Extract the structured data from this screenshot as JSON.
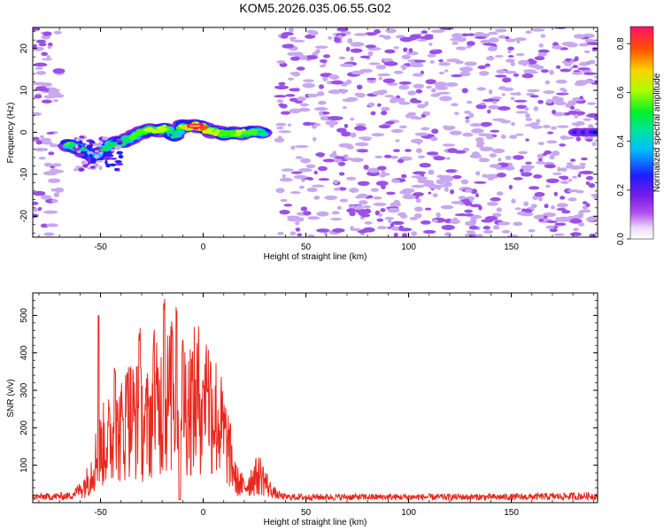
{
  "chart_data": [
    {
      "type": "heatmap",
      "title": "KOM5.2026.035.06.55.G02",
      "xlabel": "Height of straight line (km)",
      "ylabel": "Frequency (Hz)",
      "xlim": [
        -83,
        192
      ],
      "ylim": [
        -25,
        25
      ],
      "x_ticks": [
        -50,
        0,
        50,
        100,
        150
      ],
      "x_tick_labels": [
        "-50",
        "0",
        "50",
        "100",
        "150"
      ],
      "y_ticks": [
        -20,
        -10,
        0,
        10,
        20
      ],
      "y_tick_labels": [
        "-20",
        "-10",
        "0",
        "10",
        "20"
      ],
      "colorbar": {
        "label": "Normalized spectral amplitude",
        "range": [
          0,
          0.87
        ],
        "ticks": [
          0.0,
          0.2,
          0.4,
          0.6,
          0.8
        ],
        "tick_labels": [
          "0.0",
          "0.2",
          "0.4",
          "0.6",
          "0.8"
        ],
        "colormap": [
          "#c8a8f0",
          "#8a2be2",
          "#2020ff",
          "#00c8ff",
          "#00e070",
          "#40ff00",
          "#c8ff00",
          "#ffd000",
          "#ff5000",
          "#ff1060"
        ]
      },
      "main_track": {
        "x": [
          -66,
          -62,
          -58,
          -54,
          -50,
          -46,
          -42,
          -38,
          -34,
          -30,
          -26,
          -22,
          -18,
          -14,
          -10,
          -6,
          -2,
          2,
          6,
          10,
          14,
          18,
          22,
          26,
          30
        ],
        "freq": [
          -3,
          -3.5,
          -4.5,
          -6,
          -5,
          -3,
          -2.5,
          -2,
          -1,
          0,
          0.5,
          0.5,
          1,
          -1,
          1.5,
          1.5,
          1.5,
          0.5,
          0,
          -0.3,
          -0.3,
          -0.3,
          0,
          0,
          0
        ],
        "amplitude": [
          0.45,
          0.4,
          0.35,
          0.3,
          0.35,
          0.4,
          0.35,
          0.4,
          0.45,
          0.5,
          0.55,
          0.6,
          0.55,
          0.3,
          0.6,
          0.75,
          0.87,
          0.6,
          0.55,
          0.5,
          0.5,
          0.55,
          0.5,
          0.45,
          0.4
        ]
      },
      "secondary_track": {
        "x": [
          182,
          186,
          190
        ],
        "freq": [
          0,
          0,
          0
        ],
        "amplitude": [
          0.3,
          0.35,
          0.3
        ]
      },
      "noise": {
        "x_ranges": [
          [
            -83,
            -70
          ],
          [
            37,
            192
          ]
        ],
        "amplitude_range": [
          0.05,
          0.25
        ]
      }
    },
    {
      "type": "line",
      "xlabel": "Height of straight line (km)",
      "ylabel": "SNR (v/v)",
      "xlim": [
        -83,
        192
      ],
      "ylim": [
        0,
        560
      ],
      "x_ticks": [
        -50,
        0,
        50,
        100,
        150
      ],
      "x_tick_labels": [
        "-50",
        "0",
        "50",
        "100",
        "150"
      ],
      "y_ticks": [
        100,
        200,
        300,
        400,
        500
      ],
      "y_tick_labels": [
        "100",
        "200",
        "300",
        "400",
        "500"
      ],
      "series": [
        {
          "name": "SNR",
          "color": "#e8281e",
          "envelope_x": [
            -83,
            -65,
            -60,
            -56,
            -52,
            -48,
            -44,
            -40,
            -36,
            -32,
            -28,
            -24,
            -20,
            -16,
            -12,
            -8,
            -4,
            0,
            4,
            8,
            12,
            16,
            20,
            24,
            28,
            32,
            36,
            40,
            60,
            100,
            150,
            192
          ],
          "envelope_mean": [
            15,
            18,
            35,
            60,
            120,
            160,
            170,
            190,
            230,
            220,
            200,
            240,
            260,
            280,
            300,
            260,
            270,
            290,
            260,
            210,
            150,
            60,
            40,
            65,
            75,
            40,
            20,
            15,
            15,
            15,
            15,
            18
          ],
          "peaks_x": [
            -51,
            -43,
            -37,
            -31,
            -24,
            -19,
            -15,
            -13,
            -10,
            0,
            2
          ],
          "peaks_y": [
            520,
            380,
            365,
            470,
            470,
            560,
            470,
            540,
            440,
            335,
            320
          ]
        }
      ]
    }
  ]
}
